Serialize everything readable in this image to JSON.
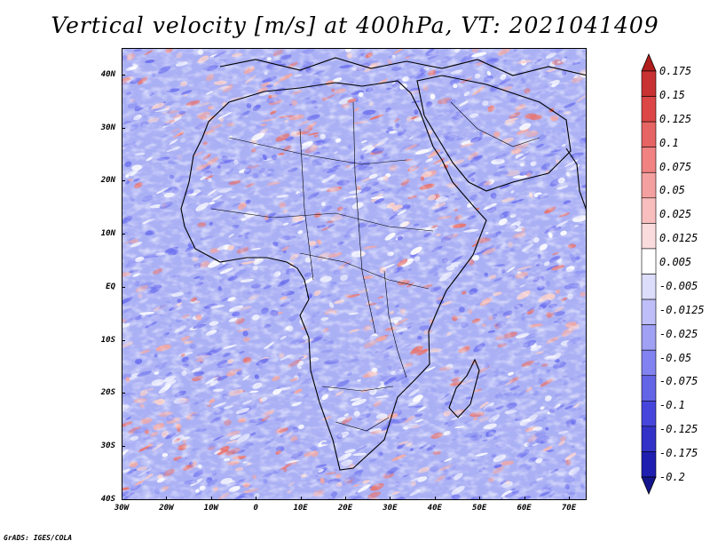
{
  "title": "Vertical velocity [m/s] at 400hPa, VT: 2021041409",
  "footer": "GrADS: IGES/COLA",
  "lat_labels": [
    "40N",
    "30N",
    "20N",
    "10N",
    "EQ",
    "10S",
    "20S",
    "30S",
    "40S"
  ],
  "lon_labels": [
    "30W",
    "20W",
    "10W",
    "0",
    "10E",
    "20E",
    "30E",
    "40E",
    "50E",
    "60E",
    "70E"
  ],
  "colorbar": {
    "labels": [
      "0.175",
      "0.15",
      "0.125",
      "0.1",
      "0.075",
      "0.05",
      "0.025",
      "0.0125",
      "0.005",
      "-0.005",
      "-0.0125",
      "-0.025",
      "-0.05",
      "-0.075",
      "-0.1",
      "-0.125",
      "-0.175",
      "-0.2"
    ],
    "colors": [
      "#b01e1e",
      "#c83232",
      "#dc4646",
      "#e66464",
      "#f08282",
      "#f5a0a0",
      "#f8bebe",
      "#fbdcdc",
      "#ffffff",
      "#dcdcfb",
      "#bebef8",
      "#a0a0f5",
      "#8282f0",
      "#6464e6",
      "#4646dc",
      "#3232c8",
      "#1e1eb0",
      "#14148c"
    ]
  },
  "palette": {
    "background_blue": "#aab0f4",
    "red": "#e8746e",
    "blue": "#6e72ee",
    "white": "#ffffff",
    "coast": "#000000"
  }
}
